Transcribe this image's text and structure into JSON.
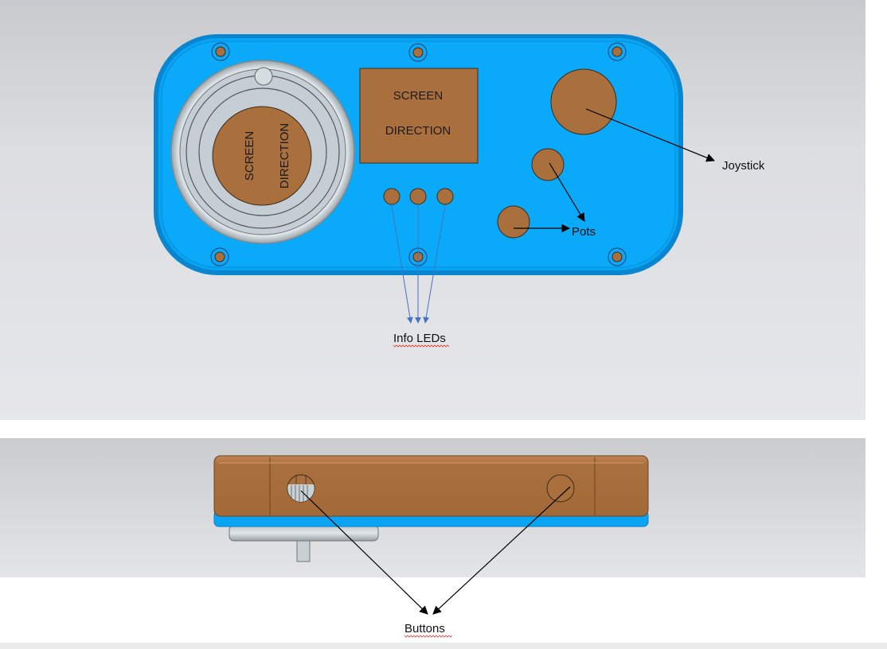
{
  "top_view": {
    "round_screen": {
      "line1": "SCREEN",
      "line2": "DIRECTION"
    },
    "rect_screen": {
      "line1": "SCREEN",
      "line2": "DIRECTION"
    },
    "labels": {
      "joystick": "Joystick",
      "pots": "Pots",
      "info_leds": "Info LEDs"
    }
  },
  "side_view": {
    "labels": {
      "buttons": "Buttons"
    }
  },
  "colors": {
    "enclosure_blue": "#0aa4f5",
    "enclosure_blue_dark": "#0a7fc4",
    "component_brown": "#a96f3c",
    "panel_bg": "#e5e6e8",
    "led_arrow": "#4472c4",
    "arrow": "#000000",
    "spellcheck_underline": "#e0362c"
  }
}
